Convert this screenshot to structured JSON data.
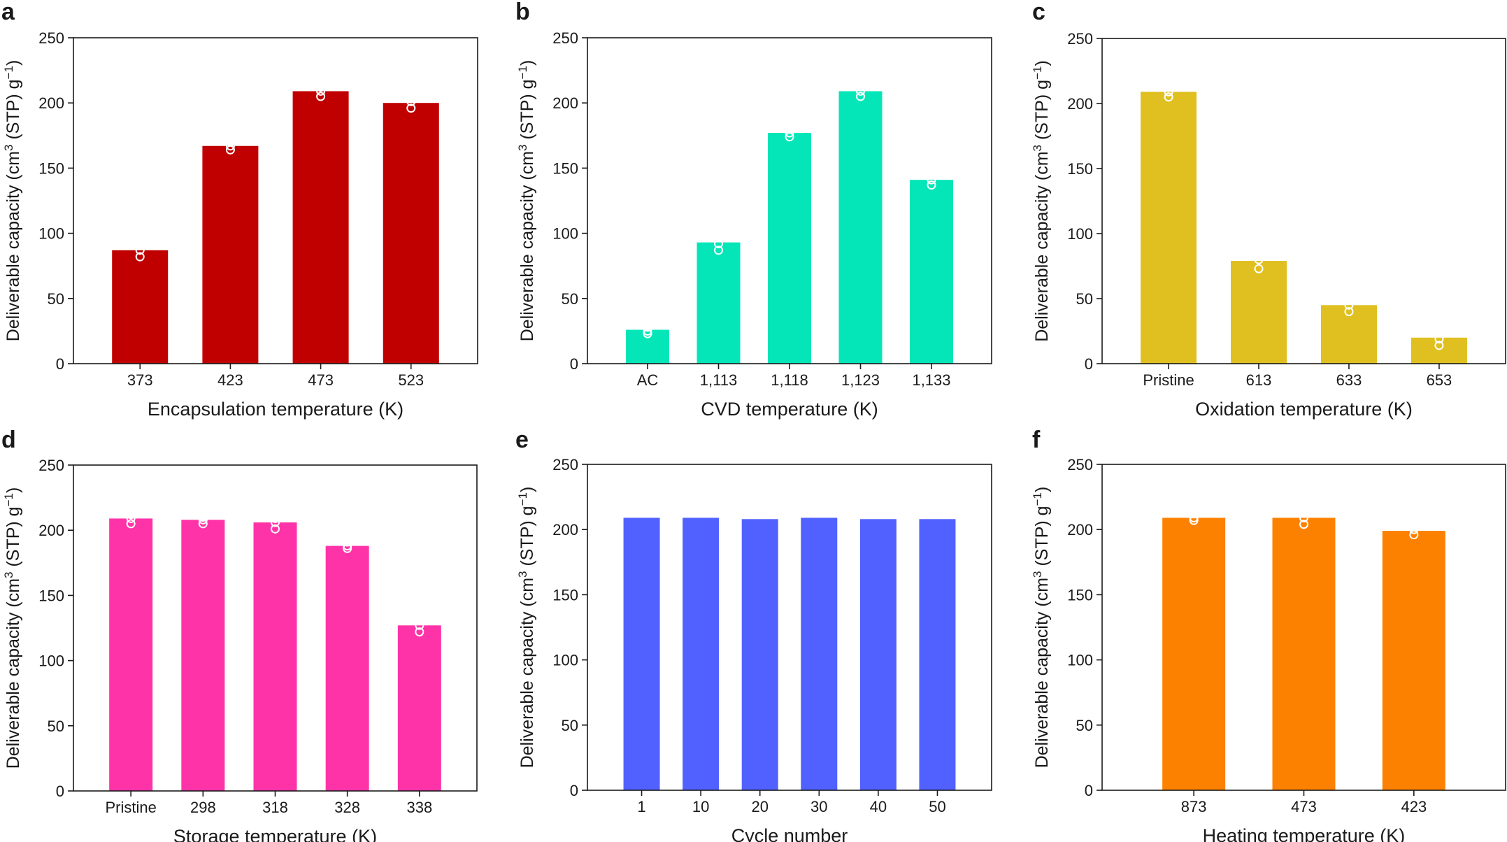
{
  "ylabel": {
    "main": "Deliverable capacity (cm",
    "sup1": "3",
    "mid": " (STP) g",
    "sup2": "−1",
    "end": ")"
  },
  "chart_data": [
    {
      "panel": "a",
      "type": "bar",
      "color": "#c00000",
      "xlabel": "Encapsulation temperature (K)",
      "ylim": [
        0,
        250
      ],
      "yticks": [
        "0",
        "50",
        "100",
        "150",
        "200",
        "250"
      ],
      "categories": [
        "373",
        "423",
        "473",
        "523"
      ],
      "values": [
        87,
        167,
        209,
        200
      ],
      "points": [
        [
          82,
          87,
          92
        ],
        [
          164,
          167,
          170
        ],
        [
          205,
          209,
          212
        ],
        [
          196,
          201,
          205
        ]
      ]
    },
    {
      "panel": "b",
      "type": "bar",
      "color": "#05e6b8",
      "xlabel": "CVD temperature (K)",
      "ylim": [
        0,
        250
      ],
      "yticks": [
        "0",
        "50",
        "100",
        "150",
        "200",
        "250"
      ],
      "categories": [
        "AC",
        "1,113",
        "1,118",
        "1,123",
        "1,133"
      ],
      "values": [
        26,
        93,
        177,
        209,
        141
      ],
      "points": [
        [
          23,
          25,
          28
        ],
        [
          87,
          92,
          98
        ],
        [
          174,
          177,
          181
        ],
        [
          205,
          209,
          213
        ],
        [
          137,
          141,
          146
        ]
      ]
    },
    {
      "panel": "c",
      "type": "bar",
      "color": "#dfc020",
      "xlabel": "Oxidation temperature (K)",
      "ylim": [
        0,
        250
      ],
      "yticks": [
        "0",
        "50",
        "100",
        "150",
        "200",
        "250"
      ],
      "categories": [
        "Pristine",
        "613",
        "633",
        "653"
      ],
      "values": [
        209,
        79,
        45,
        20
      ],
      "points": [
        [
          205,
          209,
          213
        ],
        [
          73,
          80,
          86
        ],
        [
          40,
          45,
          49
        ],
        [
          14,
          19,
          25
        ]
      ]
    },
    {
      "panel": "d",
      "type": "bar",
      "color": "#ff33a8",
      "xlabel": "Storage temperature (K)",
      "ylim": [
        0,
        250
      ],
      "yticks": [
        "0",
        "50",
        "100",
        "150",
        "200",
        "250"
      ],
      "categories": [
        "Pristine",
        "298",
        "318",
        "328",
        "338"
      ],
      "values": [
        209,
        208,
        206,
        188,
        127
      ],
      "points": [
        [
          205,
          209,
          212
        ],
        [
          205,
          208,
          210
        ],
        [
          201,
          206,
          209
        ],
        [
          186,
          188,
          191
        ],
        [
          122,
          127,
          132
        ]
      ]
    },
    {
      "panel": "e",
      "type": "bar",
      "color": "#5061ff",
      "xlabel": "Cycle number",
      "ylim": [
        0,
        250
      ],
      "yticks": [
        "0",
        "50",
        "100",
        "150",
        "200",
        "250"
      ],
      "categories": [
        "1",
        "10",
        "20",
        "30",
        "40",
        "50"
      ],
      "values": [
        209,
        209,
        208,
        209,
        208,
        208
      ],
      "points": []
    },
    {
      "panel": "f",
      "type": "bar",
      "color": "#fd8100",
      "xlabel": "Heating temperature (K)",
      "ylim": [
        0,
        250
      ],
      "yticks": [
        "0",
        "50",
        "100",
        "150",
        "200",
        "250"
      ],
      "categories": [
        "873",
        "473",
        "423"
      ],
      "values": [
        209,
        209,
        199
      ],
      "points": [
        [
          207,
          209,
          212
        ],
        [
          204,
          209,
          213
        ],
        [
          196,
          200,
          205
        ]
      ]
    }
  ]
}
